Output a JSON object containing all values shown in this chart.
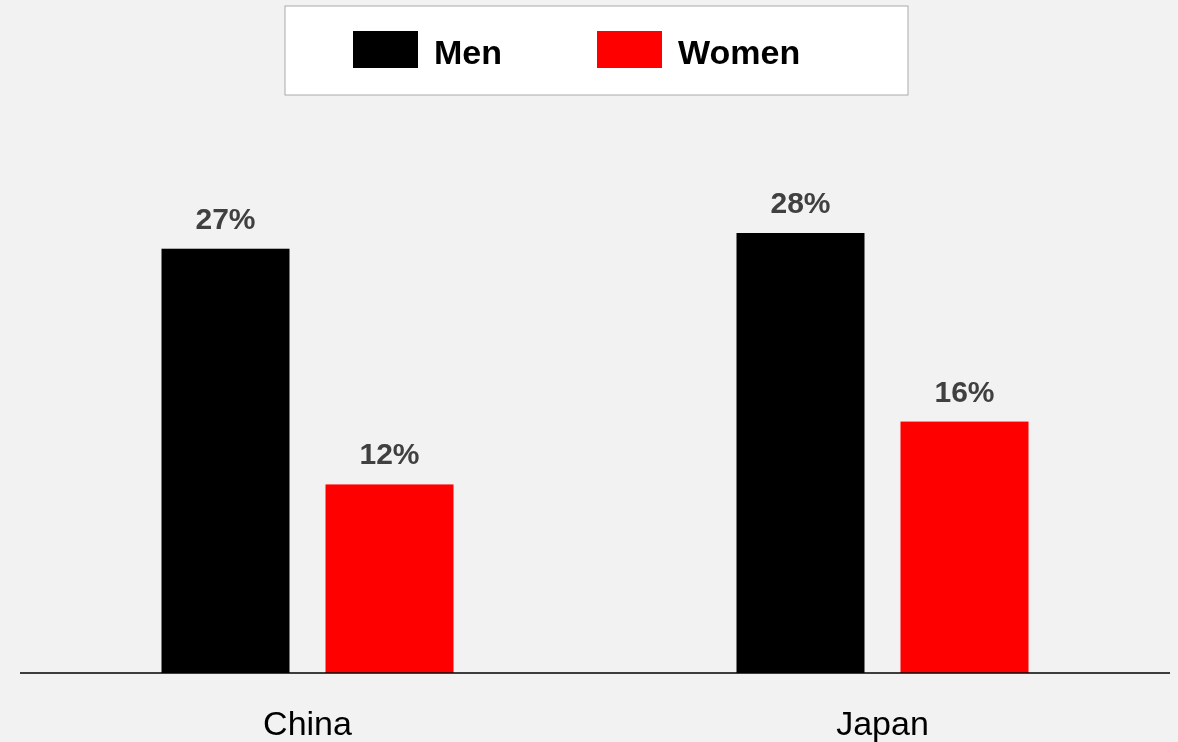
{
  "chart_data": {
    "type": "bar",
    "categories": [
      "China",
      "Japan"
    ],
    "series": [
      {
        "name": "Men",
        "color": "#000000",
        "values": [
          27,
          28
        ],
        "value_labels": [
          "27%",
          "28%"
        ]
      },
      {
        "name": "Women",
        "color": "#ff0000",
        "values": [
          12,
          16
        ],
        "value_labels": [
          "12%",
          "16%"
        ]
      }
    ],
    "legend": "top"
  }
}
